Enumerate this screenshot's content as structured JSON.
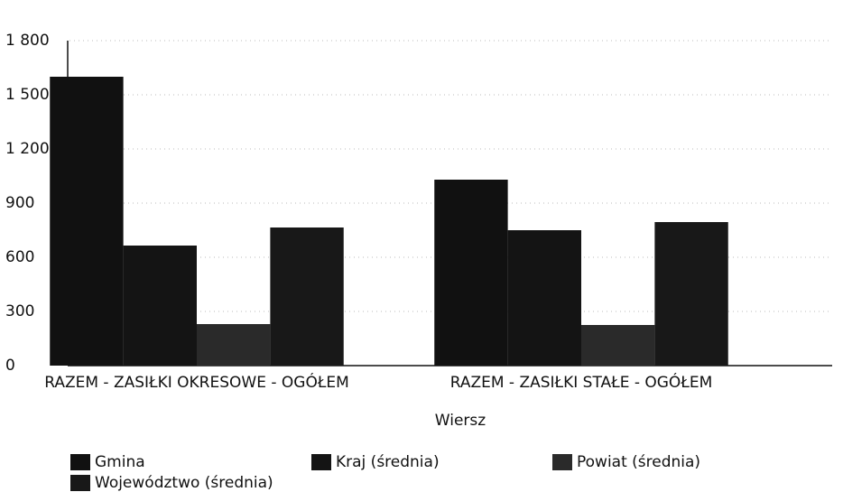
{
  "chart_data": {
    "type": "bar",
    "x_label": "Wiersz",
    "categories": [
      "RAZEM - ZASIŁKI OKRESOWE - OGÓŁEM",
      "RAZEM - ZASIŁKI STAŁE - OGÓŁEM"
    ],
    "series": [
      {
        "name": "Gmina",
        "color": "#111111",
        "values": [
          1600,
          1030
        ]
      },
      {
        "name": "Kraj (średnia)",
        "color": "#141414",
        "values": [
          665,
          750
        ]
      },
      {
        "name": "Powiat (średnia)",
        "color": "#2a2a2a",
        "values": [
          230,
          225
        ]
      },
      {
        "name": "Województwo (średnia)",
        "color": "#181818",
        "values": [
          765,
          795
        ]
      }
    ],
    "ylim": [
      0,
      1800
    ],
    "yticks": [
      0,
      300,
      600,
      900,
      {
        "value": 1200,
        "label": "1 200"
      },
      {
        "value": 1500,
        "label": "1 500"
      },
      {
        "value": 1800,
        "label": "1 800"
      }
    ],
    "grid": true
  }
}
